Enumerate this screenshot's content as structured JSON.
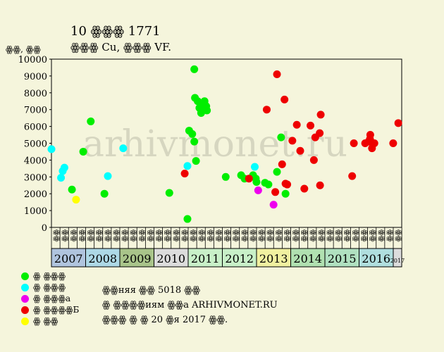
{
  "chart_data": {
    "type": "scatter",
    "title": "10 ꙮꙮꙮ 1771",
    "subtitle": "ꙮꙮꙮ Cu, ꙮꙮꙮ VF.",
    "ylabel": "ꙮꙮ, ꙮꙮ",
    "ylim": [
      0,
      10000
    ],
    "yticks": [
      "0",
      "1000",
      "2000",
      "3000",
      "4000",
      "5000",
      "6000",
      "7000",
      "8000",
      "9000",
      "10000"
    ],
    "watermark": "arhivmonet.ru",
    "years": [
      "2007",
      "2008",
      "2009",
      "2010",
      "2011",
      "2012",
      "2013",
      "2014",
      "2015",
      "2016",
      "2017"
    ],
    "year_colors": [
      "#b0c4de",
      "#add8e6",
      "#a9c48a",
      "#dcdcdc",
      "#c8f0c8",
      "#c8f0c8",
      "#f0f0a0",
      "#b0e0b0",
      "#b0e0c0",
      "#b0dede",
      "#dcdcdc"
    ],
    "quarter_labels": [
      "ꙮꙮ",
      "ꙮꙮ",
      "ꙮꙮ",
      "ꙮꙮ"
    ],
    "x_start": 2007.0,
    "x_end": 2017.25,
    "series": [
      {
        "name": "ꙮ ꙮꙮꙮ",
        "color": "#00ee00",
        "points": [
          [
            2007.6,
            2250
          ],
          [
            2007.93,
            4500
          ],
          [
            2008.15,
            6300
          ],
          [
            2008.55,
            2000
          ],
          [
            2010.45,
            2050
          ],
          [
            2010.98,
            500
          ],
          [
            2011.03,
            5750
          ],
          [
            2011.12,
            5550
          ],
          [
            2011.18,
            9400
          ],
          [
            2011.2,
            7700
          ],
          [
            2011.18,
            5100
          ],
          [
            2011.23,
            3950
          ],
          [
            2011.28,
            7500
          ],
          [
            2011.33,
            7100
          ],
          [
            2011.38,
            6800
          ],
          [
            2011.43,
            7300
          ],
          [
            2011.48,
            7500
          ],
          [
            2011.53,
            7200
          ],
          [
            2011.55,
            6950
          ],
          [
            2011.35,
            7400
          ],
          [
            2011.42,
            7000
          ],
          [
            2012.1,
            3000
          ],
          [
            2012.55,
            3100
          ],
          [
            2012.65,
            2900
          ],
          [
            2012.9,
            3100
          ],
          [
            2012.98,
            2900
          ],
          [
            2013.0,
            2700
          ],
          [
            2013.25,
            2650
          ],
          [
            2013.35,
            2550
          ],
          [
            2013.6,
            3300
          ],
          [
            2013.72,
            5350
          ],
          [
            2013.85,
            2000
          ]
        ]
      },
      {
        "name": "ꙮ ꙮꙮꙮ",
        "color": "#00ffff",
        "points": [
          [
            2007.0,
            4650
          ],
          [
            2007.28,
            2950
          ],
          [
            2007.33,
            3350
          ],
          [
            2007.38,
            3550
          ],
          [
            2008.65,
            3050
          ],
          [
            2009.1,
            4700
          ],
          [
            2010.98,
            3650
          ],
          [
            2012.95,
            3600
          ]
        ]
      },
      {
        "name": "ꙮ ꙮꙮꙮа",
        "color": "#ee00ee",
        "points": [
          [
            2013.05,
            2200
          ],
          [
            2013.5,
            1350
          ]
        ]
      },
      {
        "name": "ꙮ ꙮꙮꙮꙮБ",
        "color": "#ee0000",
        "points": [
          [
            2010.9,
            3200
          ],
          [
            2012.78,
            2900
          ],
          [
            2013.3,
            7000
          ],
          [
            2013.6,
            9100
          ],
          [
            2013.55,
            2100
          ],
          [
            2013.75,
            3750
          ],
          [
            2013.82,
            7600
          ],
          [
            2013.85,
            2600
          ],
          [
            2013.9,
            2550
          ],
          [
            2014.05,
            5150
          ],
          [
            2014.18,
            6100
          ],
          [
            2014.28,
            4550
          ],
          [
            2014.4,
            2300
          ],
          [
            2014.58,
            6050
          ],
          [
            2014.68,
            4000
          ],
          [
            2014.72,
            5350
          ],
          [
            2014.85,
            5600
          ],
          [
            2014.88,
            6700
          ],
          [
            2014.86,
            2500
          ],
          [
            2015.8,
            3050
          ],
          [
            2015.85,
            5000
          ],
          [
            2016.18,
            5000
          ],
          [
            2016.33,
            5500
          ],
          [
            2016.35,
            5100
          ],
          [
            2016.38,
            4700
          ],
          [
            2016.45,
            5000
          ],
          [
            2016.28,
            5100
          ],
          [
            2016.32,
            5250
          ],
          [
            2017.0,
            5000
          ],
          [
            2017.15,
            6200
          ]
        ]
      },
      {
        "name": "ꙮ ꙮꙮ",
        "color": "#ffff00",
        "points": [
          [
            2007.72,
            1650
          ]
        ]
      }
    ]
  },
  "notes": {
    "line1": "ꙮꙮняя ꙮꙮ 5018 ꙮꙮ",
    "line2": "ꙮ ꙮꙮꙮꙮиям ꙮꙮа ARHIVMONET.RU",
    "line3": "ꙮꙮꙮ ꙮ ꙮ 20 ꙮя 2017 ꙮꙮ."
  }
}
